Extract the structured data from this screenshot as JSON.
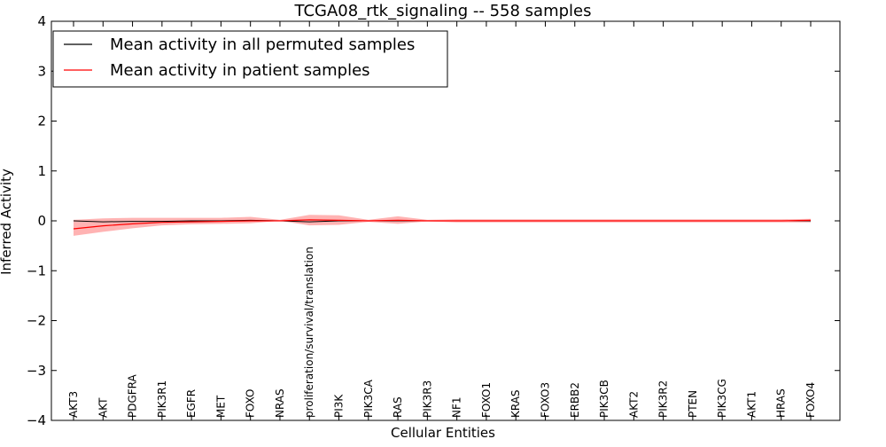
{
  "chart_data": {
    "type": "line",
    "title": "TCGA08_rtk_signaling -- 558 samples",
    "xlabel": "Cellular Entities",
    "ylabel": "Inferred Activity",
    "ylim": [
      -4,
      4
    ],
    "yticks": [
      -4,
      -3,
      -2,
      -1,
      0,
      1,
      2,
      3,
      4
    ],
    "grid": false,
    "legend_position": "top-left",
    "categories": [
      "AKT3",
      "AKT",
      "PDGFRA",
      "PIK3R1",
      "EGFR",
      "MET",
      "FOXO",
      "NRAS",
      "proliferation/survival/translation",
      "PI3K",
      "PIK3CA",
      "RAS",
      "PIK3R3",
      "NF1",
      "FOXO1",
      "KRAS",
      "FOXO3",
      "ERBB2",
      "PIK3CB",
      "AKT2",
      "PIK3R2",
      "PTEN",
      "PIK3CG",
      "AKT1",
      "HRAS",
      "FOXO4"
    ],
    "series": [
      {
        "name": "Mean activity in all permuted samples",
        "color": "#000000",
        "values": [
          0.0,
          -0.02,
          -0.01,
          -0.01,
          0.0,
          0.0,
          0.01,
          0.0,
          -0.02,
          0.0,
          0.0,
          0.0,
          0.0,
          0.0,
          0.0,
          0.0,
          0.0,
          0.0,
          0.0,
          0.0,
          0.0,
          0.0,
          0.0,
          0.0,
          0.0,
          0.0
        ]
      },
      {
        "name": "Mean activity in patient samples",
        "color": "#ff0000",
        "band_color": "#ff8080",
        "values": [
          -0.16,
          -0.1,
          -0.06,
          -0.03,
          -0.02,
          -0.01,
          0.0,
          0.0,
          0.02,
          0.01,
          0.0,
          0.01,
          0.0,
          0.0,
          0.0,
          0.0,
          0.0,
          0.0,
          0.0,
          0.0,
          0.0,
          0.0,
          0.0,
          0.0,
          0.0,
          0.01
        ],
        "band_lower": [
          -0.3,
          -0.22,
          -0.15,
          -0.09,
          -0.07,
          -0.06,
          -0.05,
          0.0,
          -0.09,
          -0.08,
          -0.02,
          -0.06,
          -0.01,
          -0.03,
          -0.03,
          -0.03,
          -0.03,
          -0.03,
          -0.03,
          -0.03,
          -0.03,
          -0.03,
          -0.03,
          -0.03,
          -0.03,
          -0.03
        ],
        "band_upper": [
          0.02,
          0.05,
          0.06,
          0.06,
          0.06,
          0.06,
          0.08,
          0.02,
          0.12,
          0.11,
          0.02,
          0.09,
          0.02,
          0.03,
          0.03,
          0.03,
          0.03,
          0.03,
          0.03,
          0.03,
          0.03,
          0.03,
          0.03,
          0.03,
          0.03,
          0.04
        ]
      }
    ]
  }
}
